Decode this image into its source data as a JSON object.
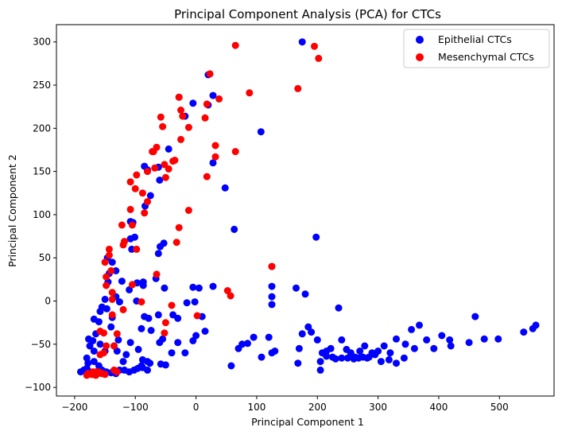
{
  "chart_data": {
    "type": "scatter",
    "title": "Principal Component Analysis (PCA) for CTCs",
    "xlabel": "Principal Component 1",
    "ylabel": "Principal Component 2",
    "xlim": [
      -230,
      590
    ],
    "ylim": [
      -110,
      320
    ],
    "xticks": [
      -200,
      -100,
      0,
      100,
      200,
      300,
      400,
      500
    ],
    "yticks": [
      -100,
      -50,
      0,
      50,
      100,
      150,
      200,
      250,
      300
    ],
    "grid": false,
    "legend_position": "top-right",
    "series": [
      {
        "name": "Epithelial CTCs",
        "color": "#0000ff",
        "points": [
          [
            175,
            300
          ],
          [
            20,
            262
          ],
          [
            28,
            238
          ],
          [
            -5,
            229
          ],
          [
            -28,
            236
          ],
          [
            107,
            196
          ],
          [
            -18,
            214
          ],
          [
            20,
            227
          ],
          [
            -45,
            176
          ],
          [
            28,
            160
          ],
          [
            48,
            131
          ],
          [
            -80,
            152
          ],
          [
            -62,
            155
          ],
          [
            -85,
            156
          ],
          [
            -60,
            140
          ],
          [
            -75,
            122
          ],
          [
            -108,
            92
          ],
          [
            -104,
            91
          ],
          [
            -84,
            110
          ],
          [
            -108,
            72
          ],
          [
            -106,
            60
          ],
          [
            -101,
            74
          ],
          [
            -53,
            67
          ],
          [
            -59,
            63
          ],
          [
            -62,
            55
          ],
          [
            63,
            83
          ],
          [
            198,
            74
          ],
          [
            125,
            40
          ],
          [
            -143,
            32
          ],
          [
            -138,
            45
          ],
          [
            -132,
            35
          ],
          [
            -145,
            22
          ],
          [
            -146,
            50
          ],
          [
            -122,
            23
          ],
          [
            -97,
            21
          ],
          [
            -87,
            22
          ],
          [
            -87,
            18
          ],
          [
            -66,
            26
          ],
          [
            -52,
            15
          ],
          [
            -110,
            13
          ],
          [
            -132,
            5
          ],
          [
            -126,
            -1
          ],
          [
            -150,
            2
          ],
          [
            -155,
            -7
          ],
          [
            -158,
            -12
          ],
          [
            -147,
            -9
          ],
          [
            -138,
            -19
          ],
          [
            -140,
            -30
          ],
          [
            -168,
            -21
          ],
          [
            -160,
            -24
          ],
          [
            -165,
            -38
          ],
          [
            -170,
            -46
          ],
          [
            -177,
            -44
          ],
          [
            -175,
            -52
          ],
          [
            -158,
            -50
          ],
          [
            -168,
            -58
          ],
          [
            -150,
            -58
          ],
          [
            -128,
            -45
          ],
          [
            -108,
            -48
          ],
          [
            -95,
            -56
          ],
          [
            -88,
            -68
          ],
          [
            -90,
            -75
          ],
          [
            -80,
            -70
          ],
          [
            -76,
            -72
          ],
          [
            -58,
            -73
          ],
          [
            -50,
            -74
          ],
          [
            -40,
            -60
          ],
          [
            -30,
            -48
          ],
          [
            -18,
            -60
          ],
          [
            -5,
            -46
          ],
          [
            0,
            -40
          ],
          [
            15,
            -35
          ],
          [
            10,
            -18
          ],
          [
            -15,
            -2
          ],
          [
            -2,
            -1
          ],
          [
            -30,
            -20
          ],
          [
            -38,
            -16
          ],
          [
            -62,
            -16
          ],
          [
            -85,
            -18
          ],
          [
            -98,
            0
          ],
          [
            -90,
            -32
          ],
          [
            -78,
            -20
          ],
          [
            -74,
            -34
          ],
          [
            -60,
            -48
          ],
          [
            -55,
            -44
          ],
          [
            5,
            15
          ],
          [
            28,
            17
          ],
          [
            -5,
            16
          ],
          [
            58,
            -75
          ],
          [
            70,
            -55
          ],
          [
            76,
            -50
          ],
          [
            85,
            -49
          ],
          [
            95,
            -42
          ],
          [
            108,
            -65
          ],
          [
            120,
            -42
          ],
          [
            125,
            -60
          ],
          [
            130,
            -58
          ],
          [
            125,
            -4
          ],
          [
            125,
            5
          ],
          [
            125,
            17
          ],
          [
            165,
            15
          ],
          [
            180,
            8
          ],
          [
            175,
            -38
          ],
          [
            185,
            -30
          ],
          [
            190,
            -36
          ],
          [
            200,
            -45
          ],
          [
            205,
            -70
          ],
          [
            208,
            -60
          ],
          [
            215,
            -58
          ],
          [
            222,
            -55
          ],
          [
            235,
            -8
          ],
          [
            240,
            -45
          ],
          [
            248,
            -56
          ],
          [
            255,
            -60
          ],
          [
            262,
            -65
          ],
          [
            270,
            -58
          ],
          [
            278,
            -52
          ],
          [
            282,
            -66
          ],
          [
            290,
            -60
          ],
          [
            300,
            -58
          ],
          [
            310,
            -52
          ],
          [
            320,
            -60
          ],
          [
            330,
            -44
          ],
          [
            345,
            -50
          ],
          [
            355,
            -33
          ],
          [
            360,
            -55
          ],
          [
            368,
            -28
          ],
          [
            380,
            -45
          ],
          [
            392,
            -55
          ],
          [
            405,
            -40
          ],
          [
            418,
            -45
          ],
          [
            420,
            -52
          ],
          [
            450,
            -48
          ],
          [
            460,
            -18
          ],
          [
            475,
            -44
          ],
          [
            498,
            -44
          ],
          [
            540,
            -36
          ],
          [
            555,
            -32
          ],
          [
            560,
            -28
          ],
          [
            168,
            -72
          ],
          [
            170,
            -55
          ],
          [
            205,
            -80
          ],
          [
            215,
            -64
          ],
          [
            225,
            -65
          ],
          [
            230,
            -67
          ],
          [
            240,
            -66
          ],
          [
            250,
            -66
          ],
          [
            260,
            -67
          ],
          [
            268,
            -66
          ],
          [
            275,
            -65
          ],
          [
            285,
            -65
          ],
          [
            295,
            -62
          ],
          [
            305,
            -70
          ],
          [
            318,
            -68
          ],
          [
            330,
            -72
          ],
          [
            343,
            -66
          ],
          [
            -185,
            -80
          ],
          [
            -180,
            -78
          ],
          [
            -175,
            -82
          ],
          [
            -170,
            -85
          ],
          [
            -162,
            -84
          ],
          [
            -155,
            -80
          ],
          [
            -148,
            -82
          ],
          [
            -140,
            -83
          ],
          [
            -132,
            -84
          ],
          [
            -126,
            -80
          ],
          [
            -118,
            -80
          ],
          [
            -110,
            -82
          ],
          [
            -102,
            -80
          ],
          [
            -96,
            -78
          ],
          [
            -88,
            -77
          ],
          [
            -80,
            -80
          ],
          [
            -190,
            -82
          ],
          [
            -178,
            -72
          ],
          [
            -180,
            -66
          ],
          [
            -168,
            -70
          ],
          [
            -160,
            -75
          ],
          [
            -120,
            -70
          ],
          [
            -115,
            -62
          ],
          [
            -130,
            -58
          ],
          [
            -135,
            -52
          ]
        ]
      },
      {
        "name": "Mesenchymal CTCs",
        "color": "#ff0000",
        "points": [
          [
            65,
            296
          ],
          [
            195,
            295
          ],
          [
            202,
            281
          ],
          [
            23,
            263
          ],
          [
            168,
            246
          ],
          [
            88,
            241
          ],
          [
            -28,
            236
          ],
          [
            38,
            234
          ],
          [
            18,
            228
          ],
          [
            -25,
            221
          ],
          [
            -58,
            213
          ],
          [
            -22,
            214
          ],
          [
            -55,
            202
          ],
          [
            -12,
            201
          ],
          [
            15,
            212
          ],
          [
            -25,
            187
          ],
          [
            -38,
            162
          ],
          [
            -65,
            178
          ],
          [
            -70,
            173
          ],
          [
            65,
            173
          ],
          [
            -52,
            158
          ],
          [
            32,
            180
          ],
          [
            32,
            167
          ],
          [
            -45,
            153
          ],
          [
            -50,
            143
          ],
          [
            -68,
            154
          ],
          [
            -72,
            173
          ],
          [
            -35,
            163
          ],
          [
            -80,
            150
          ],
          [
            -98,
            146
          ],
          [
            -108,
            138
          ],
          [
            18,
            144
          ],
          [
            -100,
            130
          ],
          [
            -88,
            125
          ],
          [
            -80,
            115
          ],
          [
            -85,
            102
          ],
          [
            -108,
            106
          ],
          [
            -12,
            105
          ],
          [
            -122,
            88
          ],
          [
            -105,
            88
          ],
          [
            -28,
            85
          ],
          [
            -118,
            69
          ],
          [
            -120,
            65
          ],
          [
            -98,
            60
          ],
          [
            -32,
            68
          ],
          [
            -143,
            60
          ],
          [
            -143,
            53
          ],
          [
            -150,
            45
          ],
          [
            -140,
            35
          ],
          [
            -148,
            28
          ],
          [
            -65,
            31
          ],
          [
            125,
            40
          ],
          [
            -105,
            19
          ],
          [
            -148,
            18
          ],
          [
            -138,
            10
          ],
          [
            -138,
            2
          ],
          [
            52,
            12
          ],
          [
            57,
            6
          ],
          [
            -90,
            -1
          ],
          [
            -40,
            -5
          ],
          [
            -120,
            -10
          ],
          [
            -138,
            -16
          ],
          [
            2,
            -17
          ],
          [
            -50,
            -25
          ],
          [
            -52,
            -37
          ],
          [
            -158,
            -35
          ],
          [
            -152,
            -37
          ],
          [
            -130,
            -38
          ],
          [
            -148,
            -52
          ],
          [
            -135,
            -52
          ],
          [
            -158,
            -62
          ],
          [
            -152,
            -60
          ],
          [
            -165,
            -82
          ],
          [
            -170,
            -82
          ],
          [
            -178,
            -84
          ],
          [
            -180,
            -86
          ],
          [
            -172,
            -85
          ],
          [
            -165,
            -86
          ],
          [
            -160,
            -82
          ],
          [
            -155,
            -84
          ],
          [
            -150,
            -85
          ],
          [
            -135,
            -80
          ],
          [
            -130,
            -82
          ]
        ]
      }
    ]
  }
}
